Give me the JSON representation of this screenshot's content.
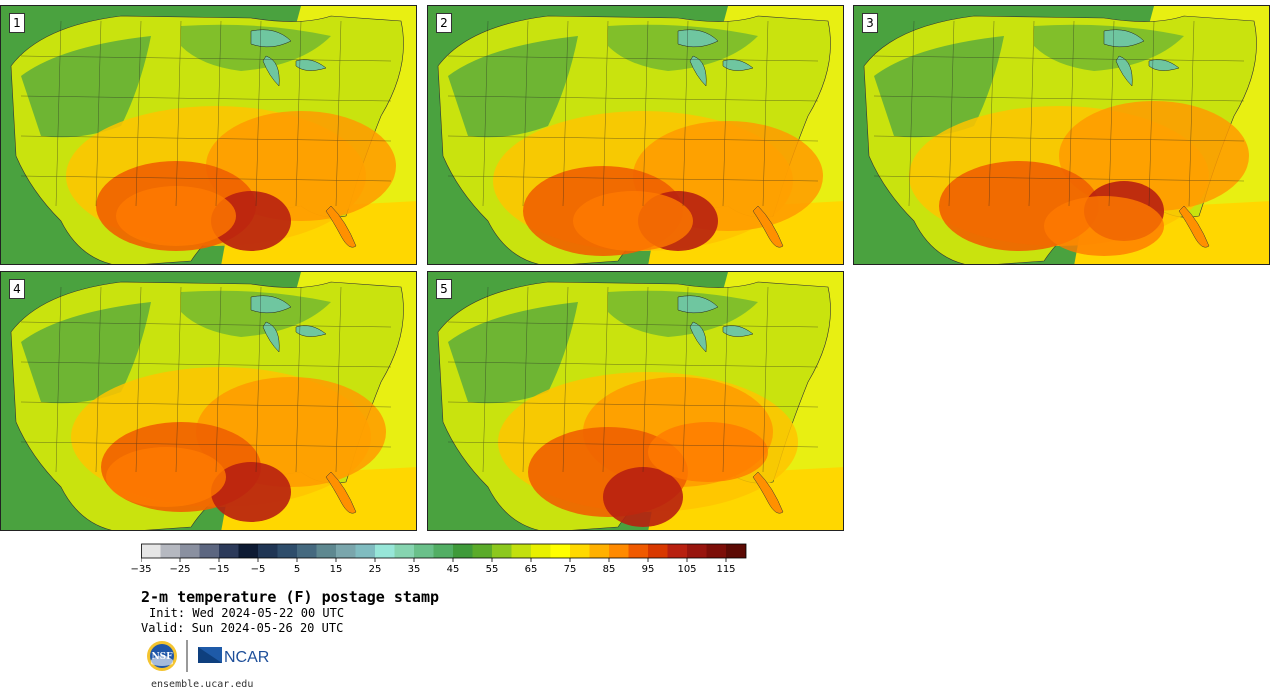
{
  "panels": [
    {
      "number": "1"
    },
    {
      "number": "2"
    },
    {
      "number": "3"
    },
    {
      "number": "4"
    },
    {
      "number": "5"
    }
  ],
  "colorbar": {
    "colors": [
      "#e6e6e6",
      "#b5b8c0",
      "#8a90a0",
      "#5c6680",
      "#2c3a5a",
      "#0d1a33",
      "#1f3554",
      "#2e4d6b",
      "#45697f",
      "#5e8890",
      "#7aa6ac",
      "#80bcc0",
      "#97e6d8",
      "#86d4b0",
      "#6ac08a",
      "#52ae64",
      "#3f9a3a",
      "#5bab2a",
      "#8cc81e",
      "#c2e00e",
      "#e8f000",
      "#ffff00",
      "#ffd900",
      "#ffb000",
      "#ff8a00",
      "#f05a00",
      "#d83800",
      "#b82010",
      "#98150e",
      "#7c0e08",
      "#5c0a04"
    ],
    "tick_labels": [
      "−35",
      "−25",
      "−15",
      "−5",
      "5",
      "15",
      "25",
      "35",
      "45",
      "55",
      "65",
      "75",
      "85",
      "95",
      "105",
      "115"
    ]
  },
  "title": "2-m temperature (F) postage stamp",
  "init": "Init: Wed 2024-05-22 00 UTC",
  "valid": "Valid: Sun 2024-05-26 20 UTC",
  "logos": {
    "nsf_text": "NSF",
    "ncar_text": "NCAR"
  },
  "url": "ensemble.ucar.edu"
}
